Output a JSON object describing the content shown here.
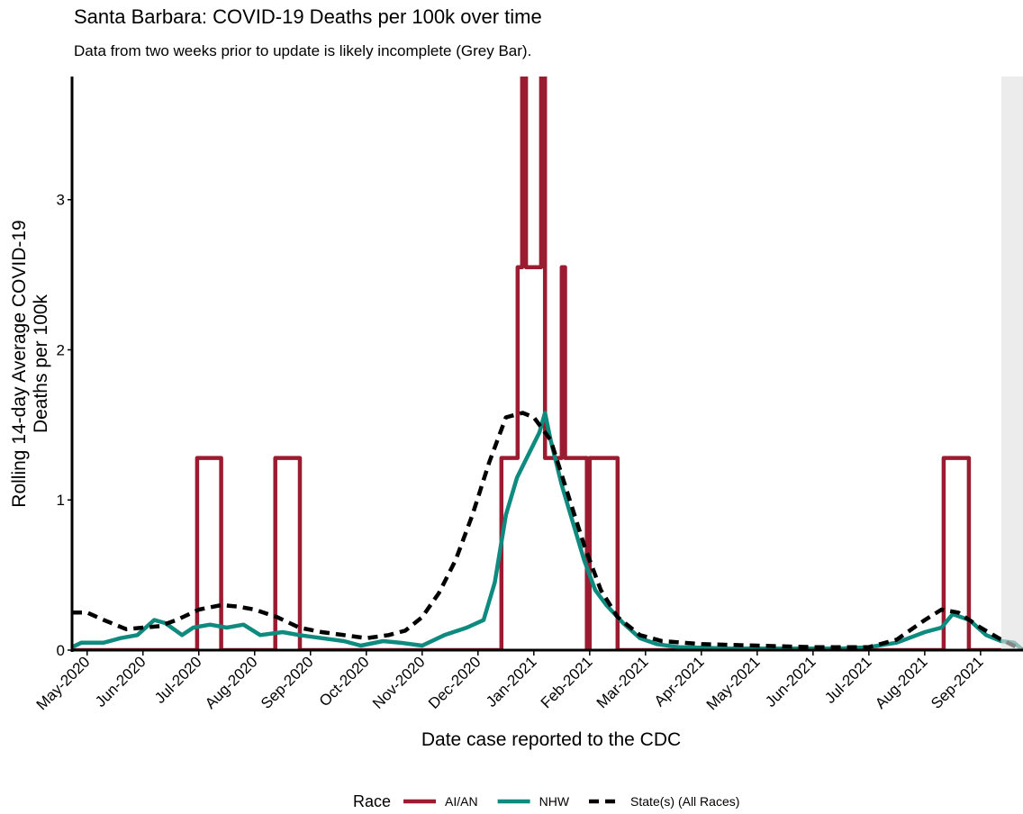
{
  "chart_data": {
    "type": "line",
    "title": "Santa Barbara: COVID-19 Deaths per 100k over time",
    "subtitle": "Data from two weeks prior to update is likely incomplete (Grey Bar).",
    "x_label": "Date case reported to the CDC",
    "y_label": [
      "Rolling 14-day Average COVID-19",
      "Deaths per 100k"
    ],
    "legend_title": "Race",
    "legend_position": "bottom",
    "grid": false,
    "shaded_xrange": [
      21.37,
      21.76
    ],
    "xlim": [
      4.73,
      21.76
    ],
    "xticks": [
      {
        "value": 5,
        "label": "May-2020"
      },
      {
        "value": 6,
        "label": "Jun-2020"
      },
      {
        "value": 7,
        "label": "Jul-2020"
      },
      {
        "value": 8,
        "label": "Aug-2020"
      },
      {
        "value": 9,
        "label": "Sep-2020"
      },
      {
        "value": 10,
        "label": "Oct-2020"
      },
      {
        "value": 11,
        "label": "Nov-2020"
      },
      {
        "value": 12,
        "label": "Dec-2020"
      },
      {
        "value": 13,
        "label": "Jan-2021"
      },
      {
        "value": 14,
        "label": "Feb-2021"
      },
      {
        "value": 15,
        "label": "Mar-2021"
      },
      {
        "value": 16,
        "label": "Apr-2021"
      },
      {
        "value": 17,
        "label": "May-2021"
      },
      {
        "value": 18,
        "label": "Jun-2021"
      },
      {
        "value": 19,
        "label": "Jul-2021"
      },
      {
        "value": 20,
        "label": "Aug-2021"
      },
      {
        "value": 21,
        "label": "Sep-2021"
      }
    ],
    "ylim": [
      0,
      3.82
    ],
    "yticks": [
      0,
      1,
      2,
      3
    ],
    "series": [
      {
        "name": "AI/AN",
        "color": "#9b1b30",
        "style": "solid",
        "x": [
          4.73,
          6.97,
          6.97,
          7.4,
          7.4,
          8.37,
          8.37,
          8.81,
          8.81,
          12.42,
          12.42,
          12.71,
          12.71,
          12.79,
          12.79,
          12.86,
          12.86,
          13.13,
          13.13,
          13.2,
          13.2,
          13.5,
          13.5,
          13.56,
          13.56,
          13.95,
          13.95,
          14.0,
          14.0,
          14.5,
          14.5,
          20.34,
          20.34,
          20.79,
          20.79,
          21.37
        ],
        "values": [
          0,
          0,
          1.28,
          1.28,
          0,
          0,
          1.28,
          1.28,
          0,
          0,
          1.28,
          1.28,
          2.55,
          2.55,
          3.83,
          3.83,
          2.55,
          2.55,
          3.83,
          3.83,
          1.28,
          1.28,
          2.55,
          2.55,
          1.28,
          1.28,
          0,
          0,
          1.28,
          1.28,
          0,
          0,
          1.28,
          1.28,
          0,
          0
        ]
      },
      {
        "name": "NHW",
        "color": "#0f8a7e",
        "style": "solid",
        "x": [
          4.73,
          4.9,
          5.3,
          5.6,
          5.9,
          6.2,
          6.4,
          6.7,
          6.9,
          7.2,
          7.5,
          7.8,
          8.1,
          8.5,
          8.8,
          9.2,
          9.6,
          9.9,
          10.3,
          10.6,
          11.0,
          11.4,
          11.8,
          12.1,
          12.3,
          12.5,
          12.7,
          12.9,
          13.1,
          13.2,
          13.3,
          13.5,
          13.7,
          13.9,
          14.1,
          14.3,
          14.6,
          14.9,
          15.2,
          15.6,
          16.5,
          17.5,
          18.5,
          19,
          19.5,
          20.0,
          20.3,
          20.5,
          20.8,
          21.1,
          21.37,
          21.6,
          21.76
        ],
        "values": [
          0.02,
          0.05,
          0.05,
          0.08,
          0.1,
          0.2,
          0.18,
          0.1,
          0.15,
          0.17,
          0.15,
          0.17,
          0.1,
          0.12,
          0.1,
          0.08,
          0.06,
          0.03,
          0.06,
          0.05,
          0.03,
          0.1,
          0.15,
          0.2,
          0.45,
          0.9,
          1.15,
          1.3,
          1.45,
          1.58,
          1.4,
          1.1,
          0.85,
          0.6,
          0.4,
          0.3,
          0.18,
          0.08,
          0.04,
          0.02,
          0.01,
          0.01,
          0.01,
          0.02,
          0.05,
          0.12,
          0.15,
          0.24,
          0.2,
          0.1,
          0.06,
          0.05,
          0
        ]
      },
      {
        "name": "State(s) (All Races)",
        "color": "#000000",
        "style": "dashed",
        "x": [
          4.73,
          5.0,
          5.3,
          5.7,
          6.0,
          6.3,
          6.6,
          7.0,
          7.4,
          7.7,
          8.0,
          8.4,
          8.8,
          9.2,
          9.6,
          10.0,
          10.4,
          10.7,
          11.0,
          11.3,
          11.6,
          11.9,
          12.2,
          12.5,
          12.8,
          13.0,
          13.3,
          13.6,
          13.9,
          14.2,
          14.5,
          14.9,
          15.3,
          16,
          17,
          18,
          19,
          19.5,
          20,
          20.3,
          20.6,
          21,
          21.37,
          21.76
        ],
        "values": [
          0.25,
          0.25,
          0.2,
          0.14,
          0.15,
          0.16,
          0.2,
          0.27,
          0.3,
          0.29,
          0.27,
          0.22,
          0.15,
          0.12,
          0.1,
          0.08,
          0.1,
          0.13,
          0.22,
          0.38,
          0.6,
          0.9,
          1.25,
          1.55,
          1.58,
          1.55,
          1.4,
          1.05,
          0.7,
          0.4,
          0.22,
          0.1,
          0.06,
          0.04,
          0.03,
          0.02,
          0.02,
          0.07,
          0.2,
          0.27,
          0.25,
          0.15,
          0.07,
          0
        ]
      }
    ]
  }
}
